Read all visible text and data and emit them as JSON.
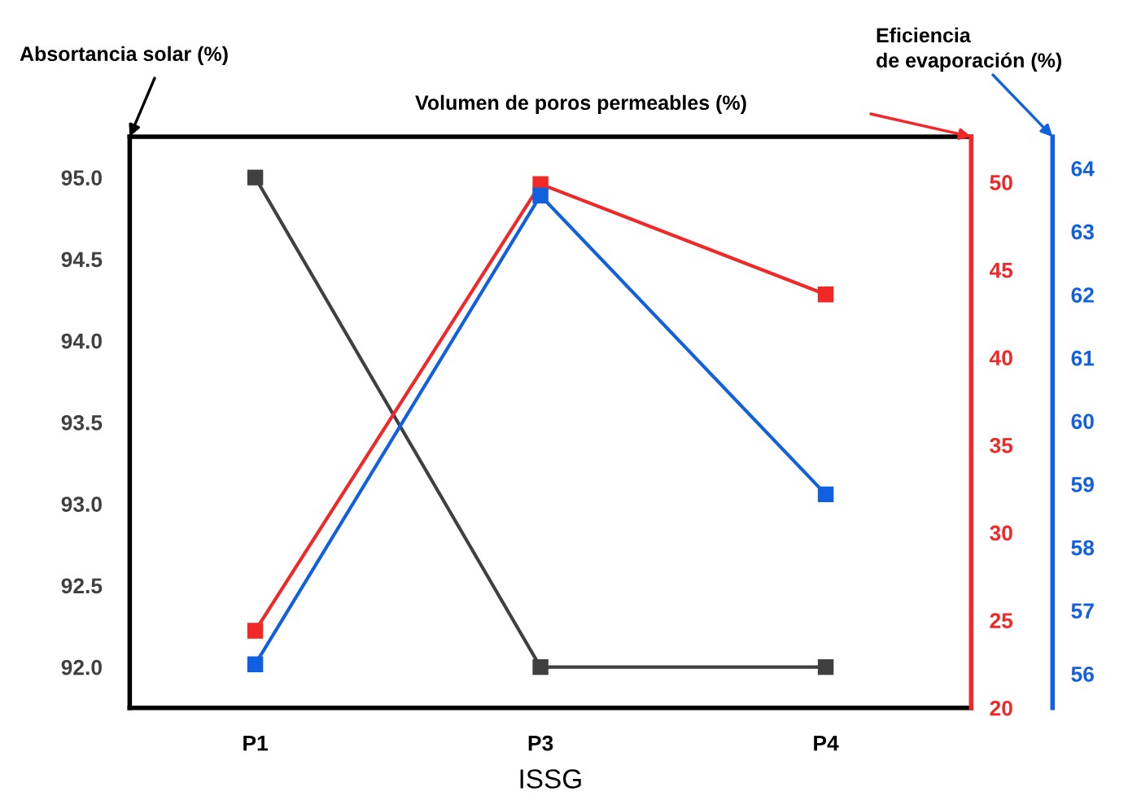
{
  "chart_data": {
    "type": "line",
    "xlabel": "ISSG",
    "ylabel": "Absortancia solar (%)",
    "y2label": "Volumen de poros permeables (%)",
    "y3label": "Eficiencia\nde evaporación (%)",
    "categories": [
      "P1",
      "P3",
      "P4"
    ],
    "series": [
      {
        "color": "#404040",
        "values": [
          95.0,
          92.0,
          92.0
        ],
        "axis": "y"
      },
      {
        "color": "#f02828",
        "values": [
          24.4,
          49.9,
          43.6
        ],
        "axis": "y2"
      },
      {
        "color": "#1060e0",
        "values": [
          56.15,
          63.57,
          58.84
        ],
        "axis": "y3"
      }
    ],
    "ylim": [
      91.75,
      95.25
    ],
    "yticks": [
      {
        "value": 92,
        "label": "92.0"
      },
      92.5,
      {
        "value": 93,
        "label": "93.0"
      },
      93.5,
      {
        "value": 94,
        "label": "94.0"
      },
      94.5,
      {
        "value": 95,
        "label": "95.0"
      }
    ],
    "y2lim": [
      20,
      52.6
    ],
    "y2ticks": [
      20,
      25,
      30,
      35,
      40,
      45,
      50
    ],
    "y3lim": [
      55.46,
      64.5
    ],
    "y3ticks": [
      56,
      57,
      58,
      59,
      60,
      61,
      62,
      63,
      64
    ],
    "marker": "square",
    "line_style": "solid",
    "grid": false,
    "legend": false
  }
}
